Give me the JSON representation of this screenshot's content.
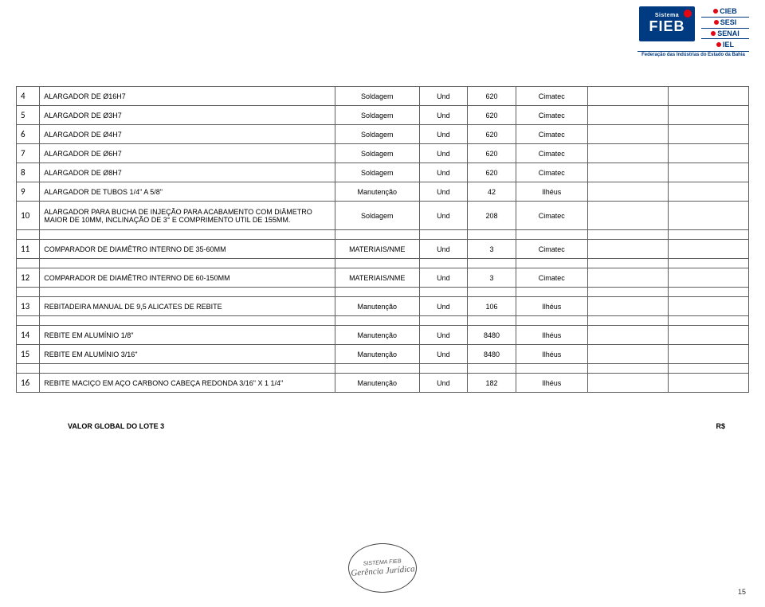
{
  "header": {
    "fieb_top": "Sistema",
    "fieb_main": "FIEB",
    "stack": [
      "CIEB",
      "SESI",
      "SENAI",
      "IEL"
    ],
    "federacao": "Federação das Indústrias do Estado da Bahia"
  },
  "rows": [
    {
      "n": "4",
      "desc": "ALARGADOR DE Ø16H7",
      "dep": "Soldagem",
      "unit": "Und",
      "qty": "620",
      "loc": "Cimatec",
      "tall": false
    },
    {
      "n": "5",
      "desc": "ALARGADOR DE Ø3H7",
      "dep": "Soldagem",
      "unit": "Und",
      "qty": "620",
      "loc": "Cimatec",
      "tall": false
    },
    {
      "n": "6",
      "desc": "ALARGADOR DE Ø4H7",
      "dep": "Soldagem",
      "unit": "Und",
      "qty": "620",
      "loc": "Cimatec",
      "tall": false
    },
    {
      "n": "7",
      "desc": "ALARGADOR DE Ø6H7",
      "dep": "Soldagem",
      "unit": "Und",
      "qty": "620",
      "loc": "Cimatec",
      "tall": false
    },
    {
      "n": "8",
      "desc": "ALARGADOR DE Ø8H7",
      "dep": "Soldagem",
      "unit": "Und",
      "qty": "620",
      "loc": "Cimatec",
      "tall": false
    },
    {
      "n": "9",
      "desc": "ALARGADOR DE TUBOS 1/4\" A  5/8\"",
      "dep": "Manutenção",
      "unit": "Und",
      "qty": "42",
      "loc": "Ilhéus",
      "tall": false
    },
    {
      "n": "10",
      "desc": "ALARGADOR PARA BUCHA DE INJEÇÃO PARA ACABAMENTO COM DIÂMETRO MAIOR DE 10MM, INCLINAÇÃO DE 3° E COMPRIMENTO UTIL DE 155MM.",
      "dep": "Soldagem",
      "unit": "Und",
      "qty": "208",
      "loc": "Cimatec",
      "tall": true
    },
    {
      "n": "11",
      "desc": "COMPARADOR DE DIAMÊTRO INTERNO DE 35-60MM",
      "dep": "MATERIAIS/NME",
      "unit": "Und",
      "qty": "3",
      "loc": "Cimatec",
      "tall": false,
      "spacer_before": true
    },
    {
      "n": "12",
      "desc": "COMPARADOR DE DIAMÊTRO INTERNO DE 60-150MM",
      "dep": "MATERIAIS/NME",
      "unit": "Und",
      "qty": "3",
      "loc": "Cimatec",
      "tall": false,
      "spacer_before": true
    },
    {
      "n": "13",
      "desc": "REBITADEIRA MANUAL DE 9,5 ALICATES DE REBITE",
      "dep": "Manutenção",
      "unit": "Und",
      "qty": "106",
      "loc": "Ilhéus",
      "tall": false,
      "spacer_before": true
    },
    {
      "n": "14",
      "desc": "REBITE EM ALUMÍNIO 1/8\"",
      "dep": "Manutenção",
      "unit": "Und",
      "qty": "8480",
      "loc": "Ilhéus",
      "tall": false,
      "spacer_before": true
    },
    {
      "n": "15",
      "desc": "REBITE EM ALUMÍNIO 3/16\"",
      "dep": "Manutenção",
      "unit": "Und",
      "qty": "8480",
      "loc": "Ilhéus",
      "tall": false
    },
    {
      "n": "16",
      "desc": "REBITE MACIÇO EM AÇO CARBONO CABEÇA REDONDA 3/16\" X 1 1/4\"",
      "dep": "Manutenção",
      "unit": "Und",
      "qty": "182",
      "loc": "Ilhéus",
      "tall": false,
      "spacer_before": true
    }
  ],
  "total": {
    "label": "VALOR GLOBAL DO LOTE 3",
    "currency": "R$"
  },
  "stamp": {
    "line1": "SISTEMA FIEB",
    "line2": "Gerência Jurídica"
  },
  "page_number": "15"
}
